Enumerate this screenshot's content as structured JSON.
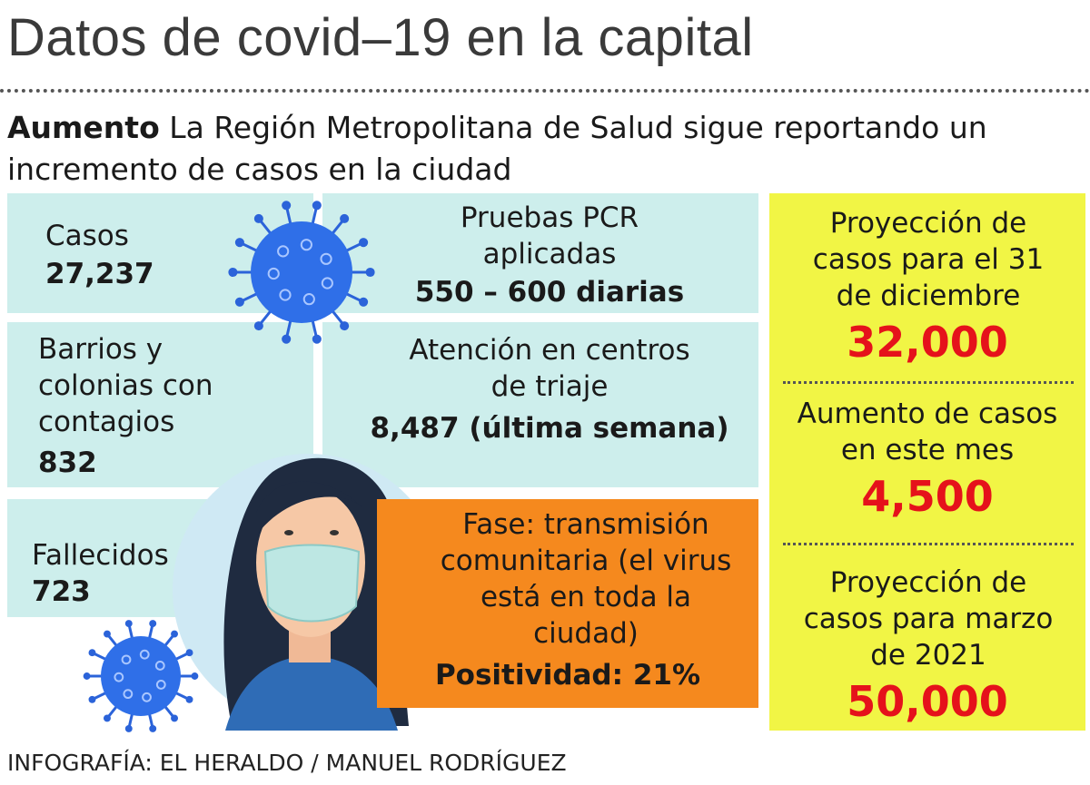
{
  "header": {
    "title": "Datos de covid–19 en la capital",
    "lead": "Aumento",
    "subtitle": "La Región Metropolitana de Salud sigue reportando un incremento de casos en la ciudad"
  },
  "panels": [
    {
      "label": "Casos",
      "value": "27,237"
    },
    {
      "label": "Pruebas PCR aplicadas",
      "value": "550 – 600 diarias"
    },
    {
      "label": "Barrios y colonias con contagios",
      "value": "832"
    },
    {
      "label": "Atención en centros de triaje",
      "value": "8,487 (última semana)"
    },
    {
      "label": "Fallecidos",
      "value": "723"
    },
    {
      "label": "Fase: transmisión comunitaria (el virus está en toda la ciudad)",
      "value": "Positividad: 21%"
    }
  ],
  "sidebar": [
    {
      "label": "Proyección de casos para el 31 de diciembre",
      "value": "32,000"
    },
    {
      "label": "Aumento de casos en este mes",
      "value": "4,500"
    },
    {
      "label": "Proyección de casos para marzo de 2021",
      "value": "50,000"
    }
  ],
  "credit": "INFOGRAFÍA: EL HERALDO / MANUEL RODRÍGUEZ"
}
